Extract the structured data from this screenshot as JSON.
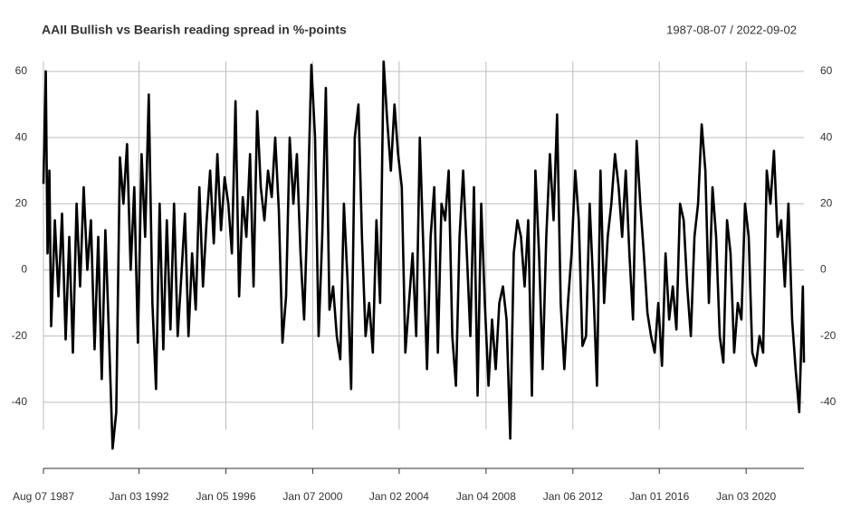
{
  "chart_data": {
    "type": "line",
    "title": "AAII Bullish vs Bearish reading spread in %-points",
    "date_range": "1987-08-07 / 2022-09-02",
    "x": [
      "1987-08-07",
      "1987-09-15",
      "1987-10-15",
      "1987-11-15",
      "1987-12-15",
      "1988-02-15",
      "1988-04-15",
      "1988-06-15",
      "1988-08-15",
      "1988-10-15",
      "1988-12-15",
      "1989-02-15",
      "1989-04-15",
      "1989-06-15",
      "1989-08-15",
      "1989-10-15",
      "1989-12-15",
      "1990-02-15",
      "1990-04-15",
      "1990-06-15",
      "1990-08-15",
      "1990-10-15",
      "1990-12-15",
      "1991-02-15",
      "1991-04-15",
      "1991-06-15",
      "1991-08-15",
      "1991-10-15",
      "1991-12-15",
      "1992-02-15",
      "1992-04-15",
      "1992-06-15",
      "1992-08-15",
      "1992-10-15",
      "1992-12-15",
      "1993-02-15",
      "1993-04-15",
      "1993-06-15",
      "1993-08-15",
      "1993-10-15",
      "1993-12-15",
      "1994-02-15",
      "1994-04-15",
      "1994-06-15",
      "1994-08-15",
      "1994-10-15",
      "1994-12-15",
      "1995-02-15",
      "1995-04-15",
      "1995-06-15",
      "1995-08-15",
      "1995-10-15",
      "1995-12-15",
      "1996-02-15",
      "1996-04-15",
      "1996-06-15",
      "1996-08-15",
      "1996-10-15",
      "1996-12-15",
      "1997-02-15",
      "1997-04-15",
      "1997-06-15",
      "1997-08-15",
      "1997-10-15",
      "1997-12-15",
      "1998-02-15",
      "1998-04-15",
      "1998-06-15",
      "1998-08-15",
      "1998-10-15",
      "1998-12-15",
      "1999-02-15",
      "1999-04-15",
      "1999-06-15",
      "1999-08-15",
      "1999-10-15",
      "1999-12-15",
      "2000-02-15",
      "2000-04-15",
      "2000-06-15",
      "2000-08-15",
      "2000-10-15",
      "2000-12-15",
      "2001-02-15",
      "2001-04-15",
      "2001-06-15",
      "2001-08-15",
      "2001-10-15",
      "2001-12-15",
      "2002-02-15",
      "2002-04-15",
      "2002-06-15",
      "2002-08-15",
      "2002-10-15",
      "2002-12-15",
      "2003-02-15",
      "2003-04-15",
      "2003-06-15",
      "2003-08-15",
      "2003-10-15",
      "2003-12-15",
      "2004-02-15",
      "2004-04-15",
      "2004-06-15",
      "2004-08-15",
      "2004-10-15",
      "2004-12-15",
      "2005-02-15",
      "2005-04-15",
      "2005-06-15",
      "2005-08-15",
      "2005-10-15",
      "2005-12-15",
      "2006-02-15",
      "2006-04-15",
      "2006-06-15",
      "2006-08-15",
      "2006-10-15",
      "2006-12-15",
      "2007-02-15",
      "2007-04-15",
      "2007-06-15",
      "2007-08-15",
      "2007-10-15",
      "2007-12-15",
      "2008-02-15",
      "2008-04-15",
      "2008-06-15",
      "2008-08-15",
      "2008-10-15",
      "2008-12-15",
      "2009-02-15",
      "2009-04-15",
      "2009-06-15",
      "2009-08-15",
      "2009-10-15",
      "2009-12-15",
      "2010-02-15",
      "2010-04-15",
      "2010-06-15",
      "2010-08-15",
      "2010-10-15",
      "2010-12-15",
      "2011-02-15",
      "2011-04-15",
      "2011-06-15",
      "2011-08-15",
      "2011-10-15",
      "2011-12-15",
      "2012-02-15",
      "2012-04-15",
      "2012-06-15",
      "2012-08-15",
      "2012-10-15",
      "2012-12-15",
      "2013-02-15",
      "2013-04-15",
      "2013-06-15",
      "2013-08-15",
      "2013-10-15",
      "2013-12-15",
      "2014-02-15",
      "2014-04-15",
      "2014-06-15",
      "2014-08-15",
      "2014-10-15",
      "2014-12-15",
      "2015-02-15",
      "2015-04-15",
      "2015-06-15",
      "2015-08-15",
      "2015-10-15",
      "2015-12-15",
      "2016-02-15",
      "2016-04-15",
      "2016-06-15",
      "2016-08-15",
      "2016-10-15",
      "2016-12-15",
      "2017-02-15",
      "2017-04-15",
      "2017-06-15",
      "2017-08-15",
      "2017-10-15",
      "2017-12-15",
      "2018-02-15",
      "2018-04-15",
      "2018-06-15",
      "2018-08-15",
      "2018-10-15",
      "2018-12-15",
      "2019-02-15",
      "2019-04-15",
      "2019-06-15",
      "2019-08-15",
      "2019-10-15",
      "2019-12-15",
      "2020-02-15",
      "2020-04-15",
      "2020-06-15",
      "2020-08-15",
      "2020-10-15",
      "2020-12-15",
      "2021-02-15",
      "2021-04-15",
      "2021-06-15",
      "2021-08-15",
      "2021-10-15",
      "2021-12-15",
      "2022-02-15",
      "2022-04-15",
      "2022-06-15",
      "2022-07-15",
      "2022-08-15",
      "2022-09-02"
    ],
    "series": [
      {
        "color": "#000000",
        "values": [
          26,
          60,
          5,
          30,
          -17,
          15,
          -8,
          17,
          -21,
          10,
          -25,
          20,
          -5,
          25,
          0,
          15,
          -24,
          10,
          -33,
          12,
          -20,
          -54,
          -43,
          34,
          20,
          38,
          0,
          25,
          -22,
          35,
          10,
          53,
          -10,
          -36,
          20,
          -24,
          15,
          -18,
          20,
          -20,
          -2,
          17,
          -20,
          5,
          -12,
          25,
          -5,
          15,
          30,
          8,
          35,
          12,
          28,
          20,
          5,
          51,
          -8,
          22,
          10,
          35,
          -5,
          48,
          25,
          15,
          30,
          22,
          40,
          18,
          -22,
          -8,
          40,
          20,
          35,
          5,
          -15,
          20,
          62,
          40,
          -20,
          10,
          55,
          -12,
          -5,
          -20,
          -27,
          20,
          -3,
          -36,
          40,
          50,
          10,
          -20,
          -10,
          -25,
          15,
          -10,
          63,
          45,
          30,
          50,
          35,
          25,
          -25,
          -10,
          5,
          -20,
          40,
          5,
          -30,
          10,
          25,
          -25,
          20,
          15,
          30,
          -20,
          -35,
          10,
          30,
          5,
          -20,
          25,
          -38,
          20,
          -10,
          -35,
          -15,
          -30,
          -10,
          -5,
          -15,
          -51,
          5,
          15,
          10,
          -5,
          15,
          -38,
          30,
          5,
          -30,
          10,
          35,
          15,
          47,
          -10,
          -30,
          -10,
          5,
          30,
          15,
          -23,
          -20,
          20,
          -5,
          -35,
          30,
          -10,
          10,
          20,
          35,
          25,
          10,
          30,
          5,
          -15,
          39,
          20,
          5,
          -13,
          -20,
          -25,
          -10,
          -29,
          5,
          -15,
          -5,
          -18,
          20,
          15,
          -5,
          -20,
          10,
          20,
          44,
          30,
          -10,
          25,
          10,
          -20,
          -28,
          15,
          5,
          -25,
          -10,
          -15,
          20,
          10,
          -25,
          -29,
          -20,
          -25,
          30,
          20,
          36,
          10,
          15,
          -5,
          20,
          -15,
          -30,
          -43,
          -25,
          -5,
          -28
        ]
      }
    ],
    "xlim": [
      "1987-08-07",
      "2022-09-02"
    ],
    "xticks": [
      {
        "value": "1987-08-07",
        "label": "Aug 07 1987"
      },
      {
        "value": "1992-01-03",
        "label": "Jan 03 1992"
      },
      {
        "value": "1996-01-05",
        "label": "Jan 05 1996"
      },
      {
        "value": "2000-01-07",
        "label": "Jan 07 2000"
      },
      {
        "value": "2004-01-02",
        "label": "Jan 02 2004"
      },
      {
        "value": "2008-01-04",
        "label": "Jan 04 2008"
      },
      {
        "value": "2012-01-06",
        "label": "Jan 06 2012"
      },
      {
        "value": "2016-01-01",
        "label": "Jan 01 2016"
      },
      {
        "value": "2020-01-03",
        "label": "Jan 03 2020"
      }
    ],
    "ylim": [
      -60,
      63
    ],
    "yticks": [
      -40,
      -20,
      0,
      20,
      40,
      60
    ],
    "grid": true
  }
}
